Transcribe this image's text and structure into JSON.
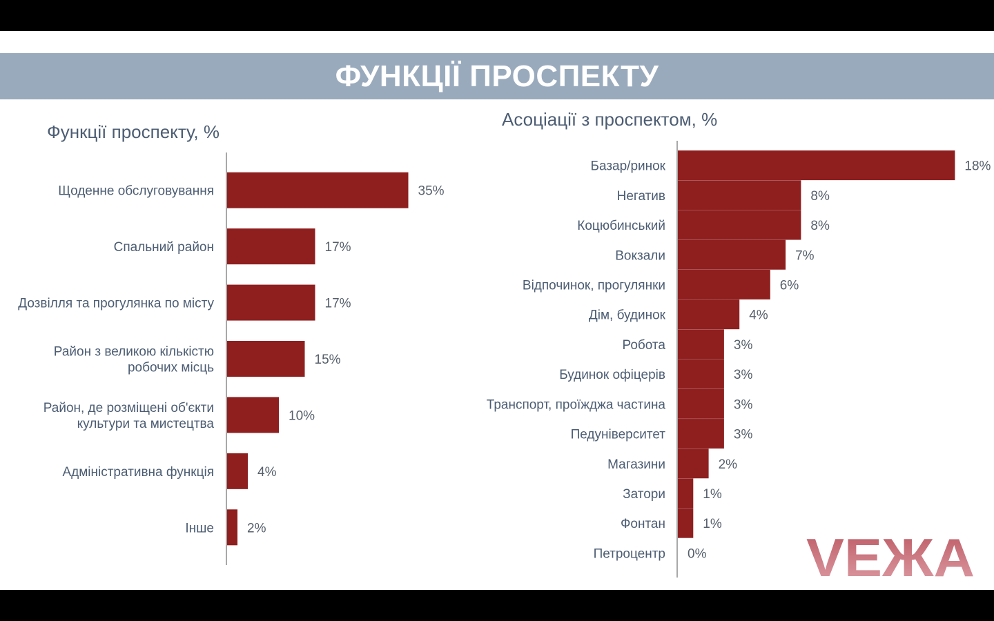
{
  "header": {
    "title": "ФУНКЦІЇ ПРОСПЕКТУ"
  },
  "logo": {
    "text": "VEЖA"
  },
  "colors": {
    "bar": "#8f1f1f",
    "banner": "#9aaabd",
    "text": "#4c5d73",
    "axis": "#8c8c8c"
  },
  "chart_data": [
    {
      "type": "bar",
      "orientation": "horizontal",
      "title": "Функції проспекту, %",
      "categories": [
        [
          "Щоденне обслуговування"
        ],
        [
          "Спальний район"
        ],
        [
          "Дозвілля та прогулянка по місту"
        ],
        [
          "Район з великою кількістю",
          "робочих місць"
        ],
        [
          "Район, де розміщені об'єкти",
          "культури та мистецтва"
        ],
        [
          "Адміністративна функція"
        ],
        [
          "Інше"
        ]
      ],
      "values": [
        35,
        17,
        17,
        15,
        10,
        4,
        2
      ],
      "value_labels": [
        "35%",
        "17%",
        "17%",
        "15%",
        "10%",
        "4%",
        "2%"
      ],
      "grid": false
    },
    {
      "type": "bar",
      "orientation": "horizontal",
      "title": "Асоціації з проспектом, %",
      "categories": [
        [
          "Базар/ринок"
        ],
        [
          "Негатив"
        ],
        [
          "Коцюбинський"
        ],
        [
          "Вокзали"
        ],
        [
          "Відпочинок, прогулянки"
        ],
        [
          "Дім, будинок"
        ],
        [
          "Робота"
        ],
        [
          "Будинок офіцерів"
        ],
        [
          "Транспорт, проїжджа частина"
        ],
        [
          "Педуніверситет"
        ],
        [
          "Магазини"
        ],
        [
          "Затори"
        ],
        [
          "Фонтан"
        ],
        [
          "Петроцентр"
        ]
      ],
      "values": [
        18,
        8,
        8,
        7,
        6,
        4,
        3,
        3,
        3,
        3,
        2,
        1,
        1,
        0
      ],
      "value_labels": [
        "18%",
        "8%",
        "8%",
        "7%",
        "6%",
        "4%",
        "3%",
        "3%",
        "3%",
        "3%",
        "2%",
        "1%",
        "1%",
        "0%"
      ],
      "grid": false
    }
  ]
}
